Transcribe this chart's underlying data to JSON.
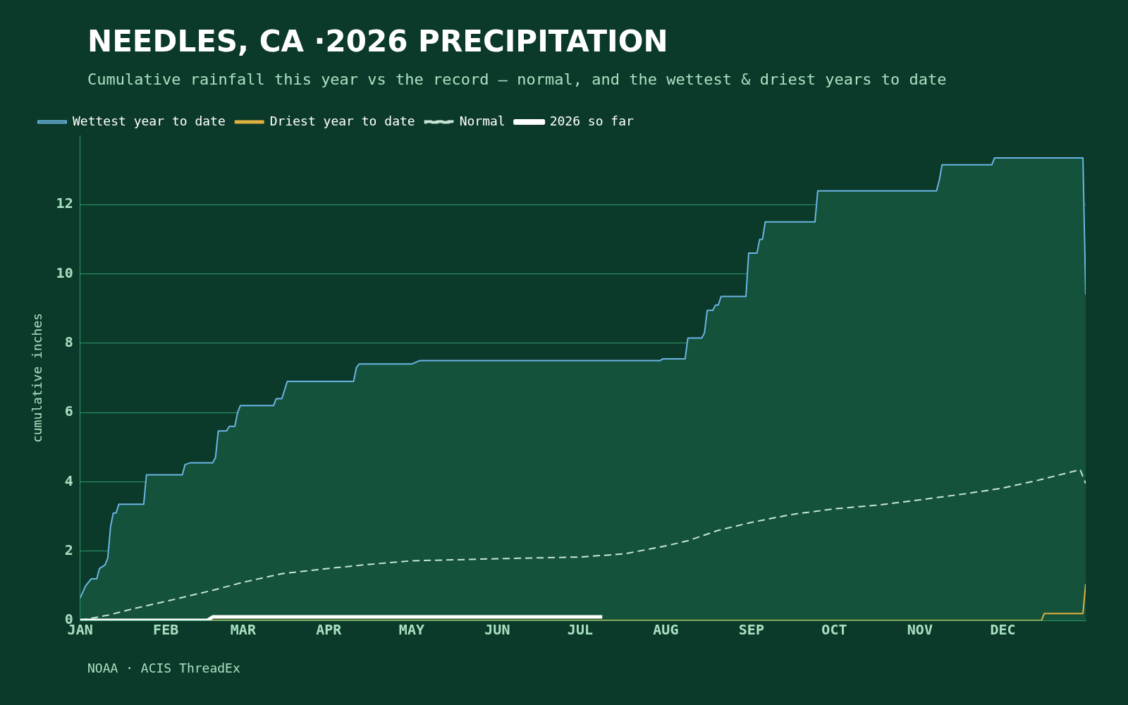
{
  "chart_data": {
    "type": "line",
    "title": "NEEDLES, CA ·2026 PRECIPITATION",
    "subtitle": "Cumulative rainfall this year vs the record — normal, and the wettest & driest years to date",
    "ylabel": "cumulative inches",
    "annotations": [
      "NOAA · ACIS ThreadEx"
    ],
    "xlim": [
      "--01-01",
      "--12-31"
    ],
    "xticks": [
      {
        "value": "--01-01",
        "label": "JAN"
      },
      {
        "value": "--02-01",
        "label": "FEB"
      },
      {
        "value": "--03-01",
        "label": "MAR"
      },
      {
        "value": "--04-01",
        "label": "APR"
      },
      {
        "value": "--05-01",
        "label": "MAY"
      },
      {
        "value": "--06-01",
        "label": "JUN"
      },
      {
        "value": "--07-01",
        "label": "JUL"
      },
      {
        "value": "--08-01",
        "label": "AUG"
      },
      {
        "value": "--09-01",
        "label": "SEP"
      },
      {
        "value": "--10-01",
        "label": "OCT"
      },
      {
        "value": "--11-01",
        "label": "NOV"
      },
      {
        "value": "--12-01",
        "label": "DEC"
      }
    ],
    "ylim": [
      0,
      14
    ],
    "yticks": [
      0,
      2,
      4,
      6,
      8,
      10,
      12
    ],
    "grid": "y",
    "legend": "top left",
    "series": [
      {
        "name": "Wettest year to date",
        "type": "area",
        "color": "#6cb4e4",
        "x": [
          "--01-01",
          "--01-03",
          "--01-05",
          "--01-07",
          "--01-08",
          "--01-10",
          "--01-11",
          "--01-12",
          "--01-13",
          "--01-14",
          "--01-15",
          "--01-24",
          "--01-25",
          "--02-07",
          "--02-08",
          "--02-10",
          "--02-18",
          "--02-19",
          "--02-20",
          "--02-23",
          "--02-24",
          "--02-26",
          "--02-27",
          "--02-28",
          "--03-12",
          "--03-13",
          "--03-15",
          "--03-17",
          "--04-10",
          "--04-11",
          "--04-12",
          "--05-01",
          "--05-04",
          "--07-30",
          "--07-31",
          "--08-08",
          "--08-09",
          "--08-14",
          "--08-15",
          "--08-16",
          "--08-18",
          "--08-19",
          "--08-20",
          "--08-21",
          "--08-30",
          "--08-31",
          "--09-03",
          "--09-04",
          "--09-05",
          "--09-06",
          "--09-24",
          "--09-25",
          "--11-07",
          "--11-08",
          "--11-09",
          "--11-27",
          "--11-28",
          "--12-30",
          "--12-31"
        ],
        "values": [
          0.65,
          1.0,
          1.2,
          1.2,
          1.5,
          1.6,
          1.8,
          2.7,
          3.1,
          3.1,
          3.35,
          3.35,
          4.2,
          4.2,
          4.5,
          4.55,
          4.55,
          4.7,
          5.47,
          5.47,
          5.6,
          5.6,
          6.0,
          6.2,
          6.2,
          6.4,
          6.4,
          6.9,
          6.9,
          7.3,
          7.4,
          7.4,
          7.5,
          7.5,
          7.55,
          7.55,
          8.15,
          8.15,
          8.3,
          8.95,
          8.95,
          9.1,
          9.1,
          9.35,
          9.35,
          10.6,
          10.6,
          11.0,
          11.0,
          11.5,
          11.5,
          12.4,
          12.4,
          12.7,
          13.15,
          13.15,
          13.35,
          13.35,
          9.4
        ]
      },
      {
        "name": "Driest year to date",
        "type": "line",
        "color": "#e0b040",
        "x": [
          "--01-01",
          "--12-15",
          "--12-16",
          "--12-30",
          "--12-31"
        ],
        "values": [
          0,
          0,
          0.2,
          0.2,
          1.05
        ]
      },
      {
        "name": "Normal",
        "type": "line",
        "line_style": "dashed",
        "color": "#c8e6d4",
        "x": [
          "--01-01",
          "--01-11",
          "--01-21",
          "--02-01",
          "--02-17",
          "--03-01",
          "--03-15",
          "--04-01",
          "--04-16",
          "--05-01",
          "--06-01",
          "--07-01",
          "--07-17",
          "--08-01",
          "--08-09",
          "--08-20",
          "--09-01",
          "--09-15",
          "--10-01",
          "--10-17",
          "--11-01",
          "--11-17",
          "--12-01",
          "--12-14",
          "--12-29",
          "--12-31"
        ],
        "values": [
          0,
          0.15,
          0.35,
          0.55,
          0.85,
          1.1,
          1.35,
          1.5,
          1.62,
          1.72,
          1.78,
          1.83,
          1.92,
          2.15,
          2.3,
          2.6,
          2.83,
          3.05,
          3.22,
          3.33,
          3.48,
          3.65,
          3.82,
          4.05,
          4.35,
          3.95
        ]
      },
      {
        "name": "2026 so far",
        "type": "line",
        "color": "#ffffff",
        "x": [
          "--01-01",
          "--02-16",
          "--02-17",
          "--02-18",
          "--07-09"
        ],
        "values": [
          0,
          0,
          0.05,
          0.1,
          0.1
        ]
      }
    ]
  }
}
